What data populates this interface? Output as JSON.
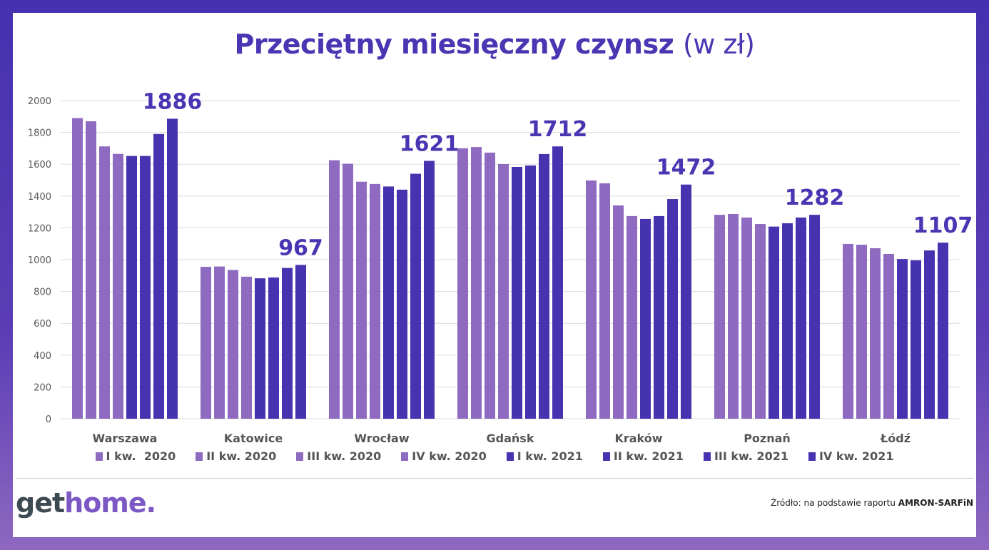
{
  "title": {
    "main": "Przeciętny miesięczny czynsz",
    "unit": "(w zł)"
  },
  "colors": {
    "light": "#8e6bc0",
    "dark": "#4633b0",
    "label": "#4a35b3"
  },
  "chart_data": {
    "type": "bar",
    "title": "Przeciętny miesięczny czynsz (w zł)",
    "categories": [
      "Warszawa",
      "Katowice",
      "Wrocław",
      "Gdańsk",
      "Kraków",
      "Poznań",
      "Łódź"
    ],
    "yticks": [
      "0",
      "200",
      "400",
      "600",
      "800",
      "1000",
      "1200",
      "1400",
      "1600",
      "1800",
      "2000"
    ],
    "ylim": [
      0,
      2000
    ],
    "grid": true,
    "legend_position": "bottom",
    "series": [
      {
        "name": "I kw.  2020",
        "color": "#8e6bc0",
        "values": [
          1890,
          955,
          1625,
          1700,
          1498,
          1282,
          1099
        ]
      },
      {
        "name": "II kw. 2020",
        "color": "#8e6bc0",
        "values": [
          1870,
          957,
          1603,
          1708,
          1480,
          1287,
          1094
        ]
      },
      {
        "name": "III kw. 2020",
        "color": "#8e6bc0",
        "values": [
          1712,
          935,
          1490,
          1673,
          1341,
          1265,
          1072
        ]
      },
      {
        "name": "IV kw. 2020",
        "color": "#8e6bc0",
        "values": [
          1665,
          893,
          1476,
          1601,
          1274,
          1224,
          1036
        ]
      },
      {
        "name": "I kw. 2021",
        "color": "#4633b0",
        "values": [
          1652,
          883,
          1460,
          1583,
          1256,
          1208,
          1004
        ]
      },
      {
        "name": "II kw. 2021",
        "color": "#4633b0",
        "values": [
          1652,
          888,
          1440,
          1592,
          1274,
          1229,
          996
        ]
      },
      {
        "name": "III kw. 2021",
        "color": "#4633b0",
        "values": [
          1790,
          948,
          1540,
          1664,
          1381,
          1265,
          1058
        ]
      },
      {
        "name": "IV kw. 2021",
        "color": "#4633b0",
        "values": [
          1886,
          967,
          1621,
          1712,
          1472,
          1282,
          1107
        ]
      }
    ],
    "data_labels": [
      "1886",
      "967",
      "1621",
      "1712",
      "1472",
      "1282",
      "1107"
    ]
  },
  "footer": {
    "logo_a": "get",
    "logo_b": "home.",
    "source_prefix": "Źródło: na podstawie raportu ",
    "source_bold": "AMRON-SARFiN"
  }
}
